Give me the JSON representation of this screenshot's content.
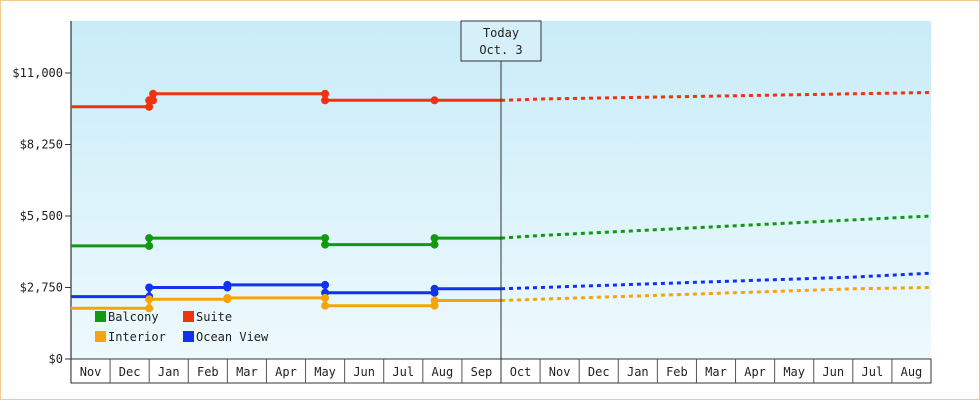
{
  "chart_data": {
    "type": "line",
    "title": "",
    "xlabel": "",
    "ylabel": "",
    "ylim": [
      0,
      13000
    ],
    "y_ticks": [
      {
        "value": 0,
        "label": "$0"
      },
      {
        "value": 2750,
        "label": "$2,750"
      },
      {
        "value": 5500,
        "label": "$5,500"
      },
      {
        "value": 8250,
        "label": "$8,250"
      },
      {
        "value": 11000,
        "label": "$11,000"
      }
    ],
    "x_months": [
      "Nov",
      "Dec",
      "Jan",
      "Feb",
      "Mar",
      "Apr",
      "May",
      "Jun",
      "Jul",
      "Aug",
      "Sep",
      "Oct",
      "Nov",
      "Dec",
      "Jan",
      "Feb",
      "Mar",
      "Apr",
      "May",
      "Jun",
      "Jul",
      "Aug"
    ],
    "today": {
      "title": "Today",
      "date": "Oct. 3",
      "month_pos": 11
    },
    "background": {
      "top": "#c8ecf8",
      "bottom": "#eef9fd"
    },
    "legend": {
      "placement": "bottom-left",
      "items": [
        {
          "name": "Balcony",
          "color": "#119911"
        },
        {
          "name": "Suite",
          "color": "#ee3311"
        },
        {
          "name": "Interior",
          "color": "#f5a50a"
        },
        {
          "name": "Ocean View",
          "color": "#1133ee"
        }
      ]
    },
    "series": [
      {
        "name": "Suite",
        "color": "#ee3311",
        "history": [
          [
            0,
            9700
          ],
          [
            2,
            9700
          ],
          [
            2,
            9950
          ],
          [
            2.1,
            9950
          ],
          [
            2.1,
            10200
          ],
          [
            6.5,
            10200
          ],
          [
            6.5,
            9950
          ],
          [
            9.3,
            9950
          ],
          [
            11,
            9950
          ]
        ],
        "markers": [
          [
            2,
            9700
          ],
          [
            2,
            9950
          ],
          [
            2.1,
            9950
          ],
          [
            2.1,
            10200
          ],
          [
            6.5,
            10200
          ],
          [
            6.5,
            9950
          ],
          [
            9.3,
            9950
          ]
        ],
        "forecast": [
          [
            11,
            9950
          ],
          [
            11.5,
            9970
          ],
          [
            12,
            10000
          ],
          [
            14,
            10050
          ],
          [
            16,
            10100
          ],
          [
            18,
            10150
          ],
          [
            20,
            10200
          ],
          [
            22,
            10250
          ]
        ]
      },
      {
        "name": "Balcony",
        "color": "#119911",
        "history": [
          [
            0,
            4350
          ],
          [
            2,
            4350
          ],
          [
            2,
            4650
          ],
          [
            6.5,
            4650
          ],
          [
            6.5,
            4400
          ],
          [
            9.3,
            4400
          ],
          [
            9.3,
            4650
          ],
          [
            11,
            4650
          ]
        ],
        "markers": [
          [
            2,
            4350
          ],
          [
            2,
            4650
          ],
          [
            6.5,
            4650
          ],
          [
            6.5,
            4400
          ],
          [
            9.3,
            4400
          ],
          [
            9.3,
            4650
          ]
        ],
        "forecast": [
          [
            11,
            4650
          ],
          [
            12,
            4750
          ],
          [
            14,
            4900
          ],
          [
            16,
            5050
          ],
          [
            18,
            5200
          ],
          [
            20,
            5350
          ],
          [
            22,
            5500
          ]
        ]
      },
      {
        "name": "Ocean View",
        "color": "#1133ee",
        "history": [
          [
            0,
            2400
          ],
          [
            2,
            2400
          ],
          [
            2,
            2750
          ],
          [
            4,
            2750
          ],
          [
            4,
            2850
          ],
          [
            6.5,
            2850
          ],
          [
            6.5,
            2550
          ],
          [
            9.3,
            2550
          ],
          [
            9.3,
            2700
          ],
          [
            11,
            2700
          ]
        ],
        "markers": [
          [
            2,
            2400
          ],
          [
            2,
            2750
          ],
          [
            4,
            2750
          ],
          [
            4,
            2850
          ],
          [
            6.5,
            2850
          ],
          [
            6.5,
            2550
          ],
          [
            9.3,
            2550
          ],
          [
            9.3,
            2700
          ]
        ],
        "forecast": [
          [
            11,
            2700
          ],
          [
            12,
            2750
          ],
          [
            14,
            2850
          ],
          [
            16,
            2950
          ],
          [
            18,
            3050
          ],
          [
            20,
            3150
          ],
          [
            22,
            3300
          ]
        ]
      },
      {
        "name": "Interior",
        "color": "#f5a50a",
        "history": [
          [
            0,
            1950
          ],
          [
            2,
            1950
          ],
          [
            2,
            2300
          ],
          [
            4,
            2300
          ],
          [
            4,
            2350
          ],
          [
            6.5,
            2350
          ],
          [
            6.5,
            2050
          ],
          [
            9.3,
            2050
          ],
          [
            9.3,
            2250
          ],
          [
            11,
            2250
          ]
        ],
        "markers": [
          [
            2,
            1950
          ],
          [
            2,
            2300
          ],
          [
            4,
            2300
          ],
          [
            4,
            2350
          ],
          [
            6.5,
            2350
          ],
          [
            6.5,
            2050
          ],
          [
            9.3,
            2050
          ],
          [
            9.3,
            2250
          ]
        ],
        "forecast": [
          [
            11,
            2250
          ],
          [
            12,
            2300
          ],
          [
            14,
            2400
          ],
          [
            16,
            2500
          ],
          [
            18,
            2600
          ],
          [
            20,
            2700
          ],
          [
            22,
            2750
          ]
        ]
      }
    ]
  }
}
